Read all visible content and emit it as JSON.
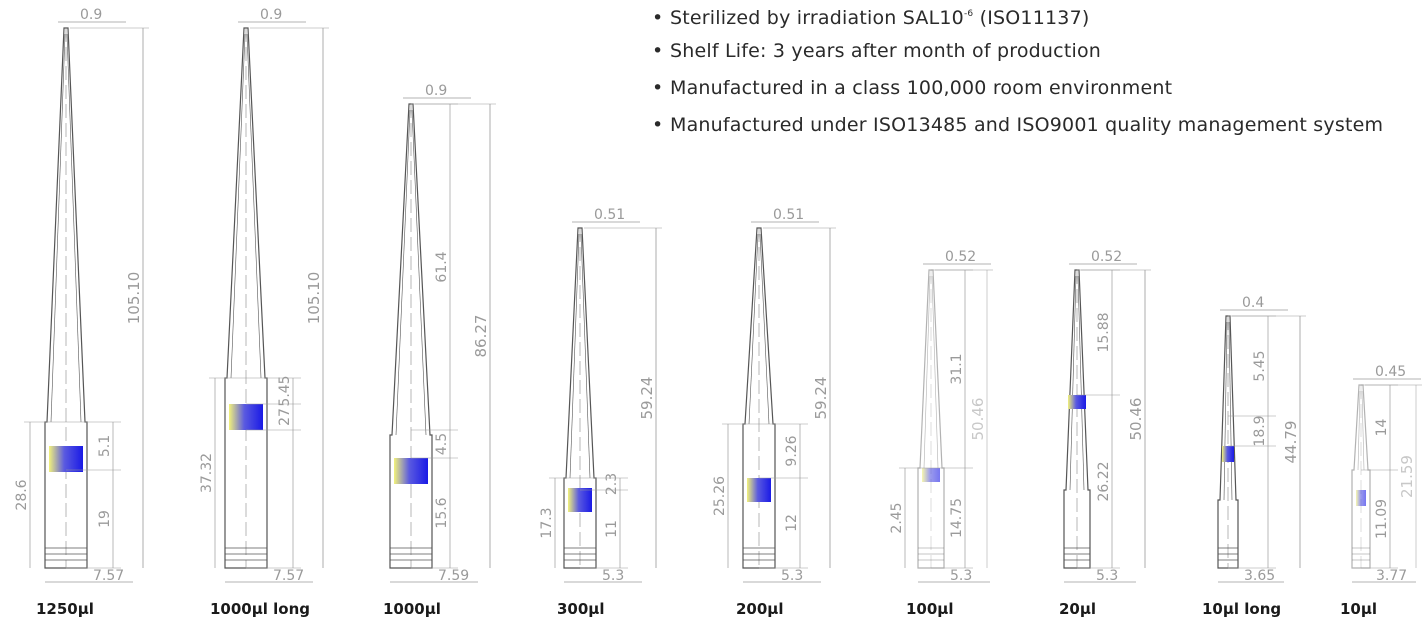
{
  "features": [
    {
      "text": "Sterilized by irradiation SAL10",
      "sup": "-6",
      "text_after": " (ISO11137)"
    },
    {
      "text": "Shelf Life: 3 years after month of production"
    },
    {
      "text": "Manufactured in a class 100,000 room environment"
    },
    {
      "text": "Manufactured under ISO13485 and ISO9001 quality management system"
    }
  ],
  "bullet_glyph": "•",
  "tips": [
    {
      "label": "1250µl",
      "tip_dia": "0.9",
      "base_dia": "7.57",
      "total": "105.10",
      "segments": [
        "5.1",
        "19"
      ],
      "lower": "28.6",
      "faint": false
    },
    {
      "label": "1000µl long",
      "tip_dia": "0.9",
      "base_dia": "7.57",
      "total": "105.10",
      "segments": [
        "5.45",
        "27"
      ],
      "lower": "37.32",
      "faint": false
    },
    {
      "label": "1000µl",
      "tip_dia": "0.9",
      "base_dia": "7.59",
      "total": "86.27",
      "segments": [
        "61.4",
        "4.5",
        "15.6"
      ],
      "lower": "",
      "faint": false
    },
    {
      "label": "300µl",
      "tip_dia": "0.51",
      "base_dia": "5.3",
      "total": "59.24",
      "segments": [
        "2.3",
        "11"
      ],
      "lower": "17.3",
      "faint": false
    },
    {
      "label": "200µl",
      "tip_dia": "0.51",
      "base_dia": "5.3",
      "total": "59.24",
      "segments": [
        "9.26",
        "12"
      ],
      "lower": "25.26",
      "faint": false
    },
    {
      "label": "100µl",
      "tip_dia": "0.52",
      "base_dia": "5.3",
      "total": "50.46",
      "segments": [
        "31.1",
        "14.75"
      ],
      "lower": "2.45",
      "faint": true
    },
    {
      "label": "20µl",
      "tip_dia": "0.52",
      "base_dia": "5.3",
      "total": "50.46",
      "segments": [
        "15.88",
        "26.22"
      ],
      "lower": "",
      "faint": false
    },
    {
      "label": "10µl long",
      "tip_dia": "0.4",
      "base_dia": "3.65",
      "total": "44.79",
      "segments": [
        "5.45",
        "18.9"
      ],
      "lower": "",
      "faint": false
    },
    {
      "label": "10µl",
      "tip_dia": "0.45",
      "base_dia": "3.77",
      "total": "21.59",
      "segments": [
        "14",
        "11.09"
      ],
      "lower": "",
      "faint": true
    }
  ],
  "colors": {
    "band_top": "#1a1ae6",
    "band_bottom": "#f2f27a",
    "line": "#555555",
    "dim": "#9a9a9a"
  }
}
